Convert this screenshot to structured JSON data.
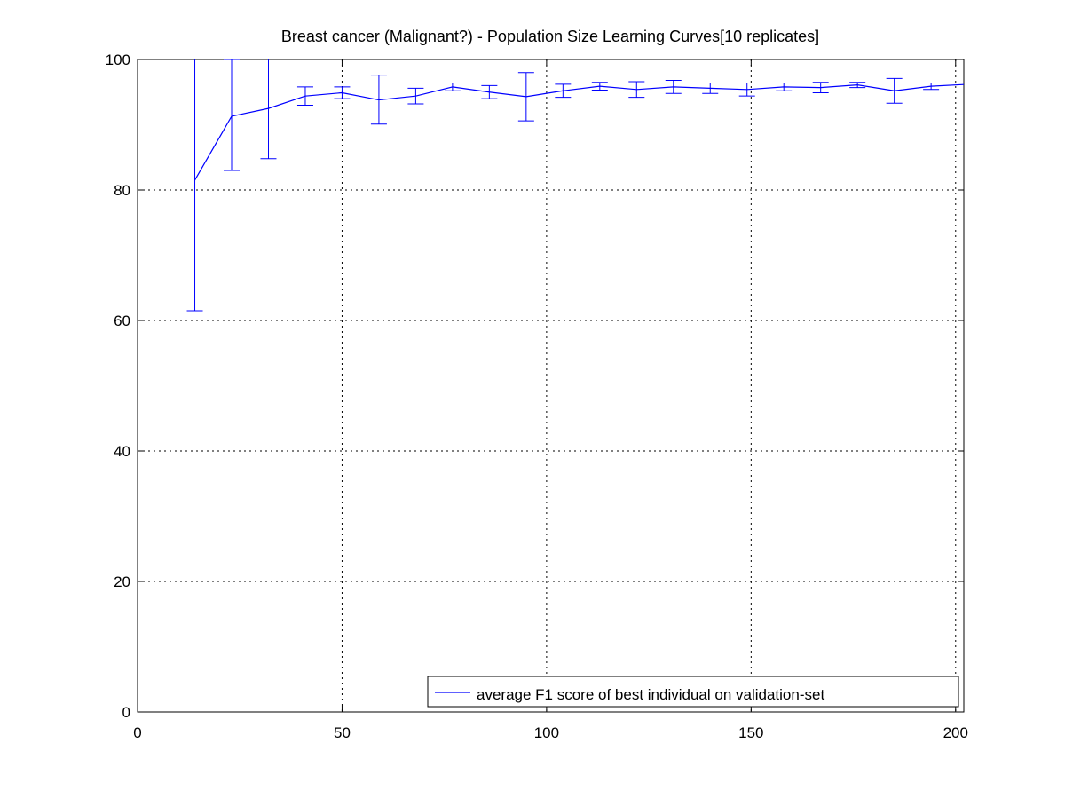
{
  "chart_data": {
    "type": "line",
    "title": "Breast cancer (Malignant?) - Population Size Learning Curves[10 replicates]",
    "xlabel": "",
    "ylabel": "",
    "xlim": [
      0,
      202
    ],
    "ylim": [
      0,
      100
    ],
    "x_ticks": [
      0,
      50,
      100,
      150,
      200
    ],
    "y_ticks": [
      0,
      20,
      40,
      60,
      80,
      100
    ],
    "x_tick_labels": [
      "0",
      "50",
      "100",
      "150",
      "200"
    ],
    "y_tick_labels": [
      "0",
      "20",
      "40",
      "60",
      "80",
      "100"
    ],
    "grid": true,
    "legend_position": "bottom-right",
    "colors": {
      "series": "#0000ff",
      "axes": "#000000",
      "grid": "#000000"
    },
    "series": [
      {
        "name": "average F1 score of best individual on validation-set",
        "error_bars": true,
        "points": [
          {
            "x": 14,
            "y": 81.5,
            "low": 61.5,
            "high": 101.5
          },
          {
            "x": 23,
            "y": 91.3,
            "low": 83.0,
            "high": 100.0
          },
          {
            "x": 32,
            "y": 92.5,
            "low": 84.8,
            "high": 100.3
          },
          {
            "x": 41,
            "y": 94.4,
            "low": 93.0,
            "high": 95.8
          },
          {
            "x": 50,
            "y": 94.9,
            "low": 94.0,
            "high": 95.8
          },
          {
            "x": 59,
            "y": 93.8,
            "low": 90.1,
            "high": 97.6
          },
          {
            "x": 68,
            "y": 94.4,
            "low": 93.2,
            "high": 95.6
          },
          {
            "x": 77,
            "y": 95.8,
            "low": 95.2,
            "high": 96.4
          },
          {
            "x": 86,
            "y": 95.0,
            "low": 94.0,
            "high": 96.0
          },
          {
            "x": 95,
            "y": 94.3,
            "low": 90.6,
            "high": 98.0
          },
          {
            "x": 104,
            "y": 95.2,
            "low": 94.2,
            "high": 96.2
          },
          {
            "x": 113,
            "y": 95.9,
            "low": 95.3,
            "high": 96.5
          },
          {
            "x": 122,
            "y": 95.4,
            "low": 94.2,
            "high": 96.6
          },
          {
            "x": 131,
            "y": 95.8,
            "low": 94.8,
            "high": 96.8
          },
          {
            "x": 140,
            "y": 95.6,
            "low": 94.8,
            "high": 96.4
          },
          {
            "x": 149,
            "y": 95.4,
            "low": 94.4,
            "high": 96.4
          },
          {
            "x": 158,
            "y": 95.8,
            "low": 95.2,
            "high": 96.4
          },
          {
            "x": 167,
            "y": 95.7,
            "low": 94.9,
            "high": 96.5
          },
          {
            "x": 176,
            "y": 96.1,
            "low": 95.7,
            "high": 96.5
          },
          {
            "x": 185,
            "y": 95.2,
            "low": 93.3,
            "high": 97.1
          },
          {
            "x": 194,
            "y": 95.9,
            "low": 95.4,
            "high": 96.4
          },
          {
            "x": 203,
            "y": 96.2,
            "low": 95.8,
            "high": 96.6
          }
        ]
      }
    ]
  }
}
